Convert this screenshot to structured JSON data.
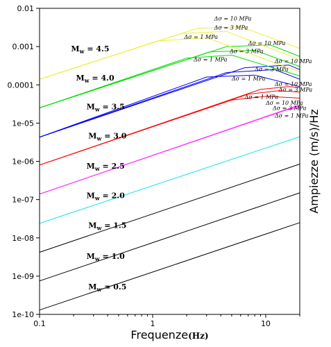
{
  "chart_data": {
    "type": "line",
    "title": "",
    "xlabel": "Frequenze",
    "xlabel_unit": "(Hz)",
    "ylabel": "Ampiezze (m/s)/Hz",
    "x_scale": "log",
    "y_scale": "log",
    "xlim": [
      0.1,
      20
    ],
    "ylim": [
      1e-10,
      0.01
    ],
    "grid": false,
    "x_ticks": [
      {
        "value": 0.1,
        "label": "0.1"
      },
      {
        "value": 1,
        "label": "1"
      },
      {
        "value": 10,
        "label": "10"
      }
    ],
    "y_ticks": [
      {
        "value": 0.01,
        "label": "0.01"
      },
      {
        "value": 0.001,
        "label": "0.001"
      },
      {
        "value": 0.0001,
        "label": "0.0001"
      },
      {
        "value": 1e-05,
        "label": "1e-05"
      },
      {
        "value": 1e-06,
        "label": "1e-06"
      },
      {
        "value": 1e-07,
        "label": "1e-07"
      },
      {
        "value": 1e-08,
        "label": "1e-08"
      },
      {
        "value": 1e-09,
        "label": "1e-09"
      },
      {
        "value": 1e-10,
        "label": "1e-10"
      }
    ],
    "series": [
      {
        "mw": "0.5",
        "color": "#000000",
        "corners": [],
        "points": [
          [
            0.1,
            1.3e-10
          ],
          [
            20,
            2.5e-08
          ]
        ]
      },
      {
        "mw": "1.0",
        "color": "#000000",
        "corners": [],
        "points": [
          [
            0.1,
            7.5e-10
          ],
          [
            20,
            1.5e-07
          ]
        ]
      },
      {
        "mw": "1.5",
        "color": "#000000",
        "corners": [],
        "points": [
          [
            0.1,
            4.2e-09
          ],
          [
            20,
            8.5e-07
          ]
        ]
      },
      {
        "mw": "2.0",
        "color": "#00e5ee",
        "corners": [],
        "points": [
          [
            0.1,
            2.4e-08
          ],
          [
            20,
            4.4e-06
          ]
        ]
      },
      {
        "mw": "2.5",
        "color": "#ff33ff",
        "corners": [
          {
            "ds": "1",
            "points": [
              [
                0.1,
                1.4e-07
              ],
              [
                15,
                2.2e-05
              ],
              [
                20,
                2.5e-05
              ]
            ]
          },
          {
            "ds": "3",
            "points": [
              [
                0.1,
                1.4e-07
              ],
              [
                18,
                2.6e-05
              ],
              [
                20,
                2.8e-05
              ]
            ]
          },
          {
            "ds": "10",
            "points": [
              [
                0.1,
                1.4e-07
              ],
              [
                20,
                3e-05
              ]
            ]
          }
        ]
      },
      {
        "mw": "3.0",
        "color": "#ff0000",
        "corners": [
          {
            "ds": "1",
            "points": [
              [
                0.1,
                8e-07
              ],
              [
                5,
                4e-05
              ],
              [
                10,
                5e-05
              ],
              [
                20,
                4.5e-05
              ]
            ]
          },
          {
            "ds": "3",
            "points": [
              [
                0.1,
                8e-07
              ],
              [
                7,
                5.7e-05
              ],
              [
                13,
                7e-05
              ],
              [
                20,
                6.5e-05
              ]
            ]
          },
          {
            "ds": "10",
            "points": [
              [
                0.1,
                8e-07
              ],
              [
                9,
                7.6e-05
              ],
              [
                16,
                9e-05
              ],
              [
                20,
                8.5e-05
              ]
            ]
          }
        ]
      },
      {
        "mw": "3.5",
        "color": "#0000ee",
        "corners": [
          {
            "ds": "1",
            "points": [
              [
                0.1,
                4.3e-06
              ],
              [
                3,
                0.00016
              ],
              [
                8,
                0.00018
              ],
              [
                20,
                9e-05
              ]
            ]
          },
          {
            "ds": "3",
            "points": [
              [
                0.1,
                4.3e-06
              ],
              [
                4.5,
                0.00021
              ],
              [
                12,
                0.00025
              ],
              [
                20,
                0.00014
              ]
            ]
          },
          {
            "ds": "10",
            "points": [
              [
                0.1,
                4.3e-06
              ],
              [
                6.5,
                0.00028
              ],
              [
                16,
                0.00033
              ],
              [
                20,
                0.00025
              ]
            ]
          }
        ]
      },
      {
        "mw": "4.0",
        "color": "#00dd00",
        "corners": [
          {
            "ds": "1",
            "points": [
              [
                0.1,
                2.5e-05
              ],
              [
                2,
                0.0005
              ],
              [
                5,
                0.0006
              ],
              [
                20,
                0.00017
              ]
            ]
          },
          {
            "ds": "3",
            "points": [
              [
                0.1,
                2.5e-05
              ],
              [
                3.2,
                0.00073
              ],
              [
                8,
                0.0008
              ],
              [
                20,
                0.0003
              ]
            ]
          },
          {
            "ds": "10",
            "points": [
              [
                0.1,
                2.5e-05
              ],
              [
                4.5,
                0.001
              ],
              [
                11,
                0.0011
              ],
              [
                20,
                0.00055
              ]
            ]
          }
        ]
      },
      {
        "mw": "4.5",
        "color": "#eeee33",
        "corners": [
          {
            "ds": "1",
            "points": [
              [
                0.1,
                0.00014
              ],
              [
                1.1,
                0.0014
              ],
              [
                3,
                0.0017
              ],
              [
                20,
                0.00022
              ]
            ]
          },
          {
            "ds": "3",
            "points": [
              [
                0.1,
                0.00014
              ],
              [
                1.8,
                0.0022
              ],
              [
                4.5,
                0.0025
              ],
              [
                20,
                0.00045
              ]
            ]
          },
          {
            "ds": "10",
            "points": [
              [
                0.1,
                0.00014
              ],
              [
                2.5,
                0.003
              ],
              [
                6,
                0.0033
              ],
              [
                20,
                0.0009
              ]
            ]
          }
        ]
      }
    ],
    "mw_labels": [
      {
        "mw": "4.5",
        "x": 0.19,
        "y": 0.00075
      },
      {
        "mw": "4.0",
        "x": 0.21,
        "y": 0.00013
      },
      {
        "mw": "3.5",
        "x": 0.26,
        "y": 2.3e-05
      },
      {
        "mw": "3.0",
        "x": 0.27,
        "y": 4e-06
      },
      {
        "mw": "2.5",
        "x": 0.26,
        "y": 6.5e-07
      },
      {
        "mw": "2.0",
        "x": 0.26,
        "y": 1.1e-07
      },
      {
        "mw": "1.5",
        "x": 0.27,
        "y": 1.8e-08
      },
      {
        "mw": "1.0",
        "x": 0.26,
        "y": 2.8e-09
      },
      {
        "mw": "0.5",
        "x": 0.27,
        "y": 4.5e-10
      }
    ],
    "ds_labels": [
      {
        "ds": "10",
        "x": 3.5,
        "y": 0.0048
      },
      {
        "ds": "3",
        "x": 3.5,
        "y": 0.0028
      },
      {
        "ds": "1",
        "x": 1.9,
        "y": 0.0016
      },
      {
        "ds": "10",
        "x": 7,
        "y": 0.0011
      },
      {
        "ds": "3",
        "x": 4.8,
        "y": 0.00067
      },
      {
        "ds": "1",
        "x": 2.3,
        "y": 0.00041
      },
      {
        "ds": "10",
        "x": 12,
        "y": 0.00037
      },
      {
        "ds": "3",
        "x": 8,
        "y": 0.00023
      },
      {
        "ds": "1",
        "x": 5,
        "y": 0.00013
      },
      {
        "ds": "10",
        "x": 12,
        "y": 9.2e-05
      },
      {
        "ds": "3",
        "x": 13,
        "y": 6.6e-05
      },
      {
        "ds": "1",
        "x": 6.5,
        "y": 4.3e-05
      },
      {
        "ds": "10",
        "x": 10,
        "y": 3e-05
      },
      {
        "ds": "3",
        "x": 11.5,
        "y": 2.2e-05
      },
      {
        "ds": "1",
        "x": 12,
        "y": 1.4e-05
      }
    ],
    "mw_prefix": "M",
    "mw_subscript": "w",
    "ds_prefix": "Δσ = ",
    "ds_unit": " MPa"
  }
}
